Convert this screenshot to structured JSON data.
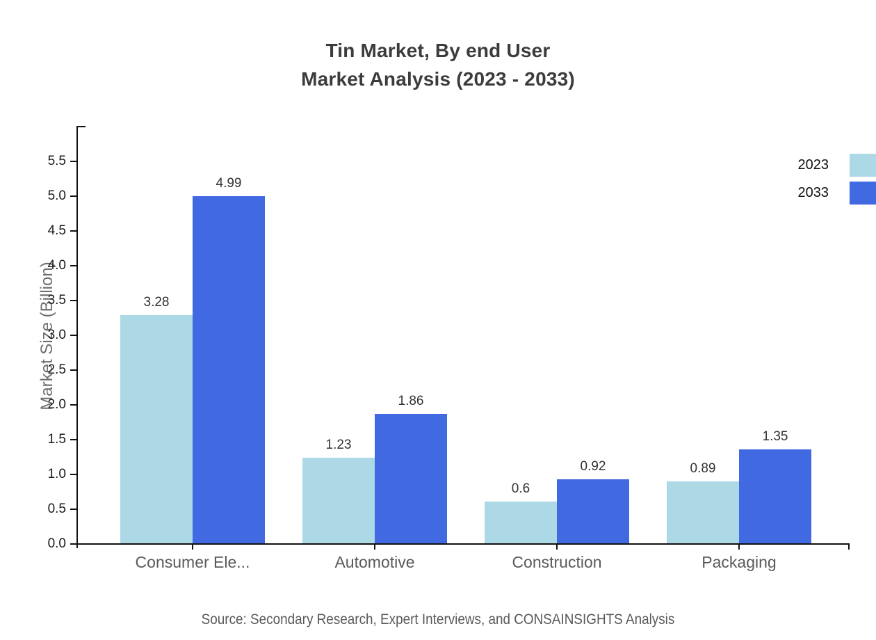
{
  "title": {
    "line1": "Tin Market, By end User",
    "line2": "Market Analysis (2023 - 2033)"
  },
  "legend": [
    {
      "label": "2023",
      "color": "#ADD8E6"
    },
    {
      "label": "2033",
      "color": "#4169E1"
    }
  ],
  "source": "Source: Secondary Research, Expert Interviews, and CONSAINSIGHTS Analysis",
  "chart_data": {
    "type": "bar",
    "categories": [
      "Consumer Ele...",
      "Automotive",
      "Construction",
      "Packaging"
    ],
    "series": [
      {
        "name": "2023",
        "color": "#ADD8E6",
        "values": [
          3.28,
          1.23,
          0.6,
          0.89
        ]
      },
      {
        "name": "2033",
        "color": "#4169E1",
        "values": [
          4.99,
          1.86,
          0.92,
          1.35
        ]
      }
    ],
    "title": "Tin Market, By end User Market Analysis (2023 - 2033)",
    "xlabel": "",
    "ylabel": "Market Size (Billion)",
    "ylim": [
      0,
      6
    ],
    "ytick_step": 0.5,
    "ytick_max": 5.5,
    "grid": false,
    "legend_position": "top-right",
    "value_labels": true
  }
}
